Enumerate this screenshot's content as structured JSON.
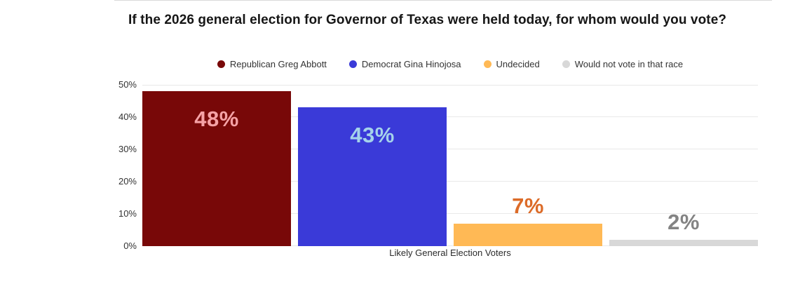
{
  "chart_data": {
    "type": "bar",
    "title": "If the 2026 general election for Governor of Texas were held today, for whom would you vote?",
    "xlabel": "Likely General Election Voters",
    "categories": [
      "Likely General Election Voters"
    ],
    "ylim": [
      0,
      50
    ],
    "yticks": [
      0,
      10,
      20,
      30,
      40,
      50
    ],
    "ytick_labels": [
      "0%",
      "10%",
      "20%",
      "30%",
      "40%",
      "50%"
    ],
    "grid": "horizontal",
    "legend_position": "top-center",
    "series": [
      {
        "name": "Republican Greg Abbott",
        "value": 48,
        "data_label": "48%",
        "bar_color": "#780808",
        "label_color": "#f5a2a6",
        "label_placement": "inside-top"
      },
      {
        "name": "Democrat Gina Hinojosa",
        "value": 43,
        "data_label": "43%",
        "bar_color": "#3a3ad8",
        "label_color": "#a5d3ea",
        "label_placement": "inside-top"
      },
      {
        "name": "Undecided",
        "value": 7,
        "data_label": "7%",
        "bar_color": "#ffb955",
        "label_color": "#dc6b28",
        "label_placement": "above"
      },
      {
        "name": "Would not vote in that race",
        "value": 2,
        "data_label": "2%",
        "bar_color": "#d8d8d8",
        "label_color": "#838383",
        "label_placement": "above"
      }
    ],
    "colors": {
      "gridline": "#e9e9e9",
      "divider": "#d9d9d9",
      "title_text": "#161616",
      "axis_text": "#333333"
    }
  }
}
